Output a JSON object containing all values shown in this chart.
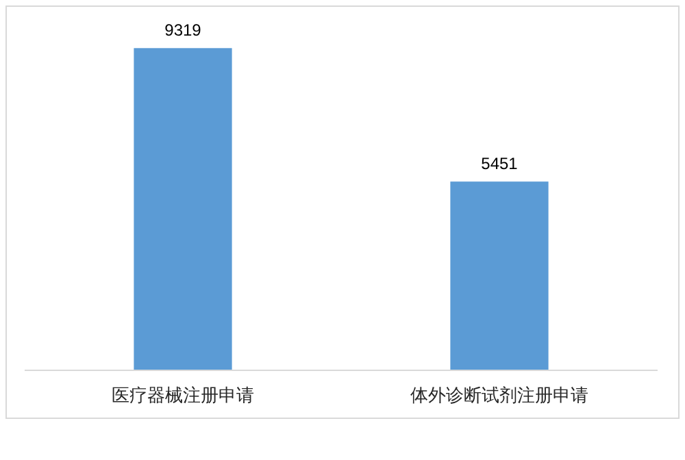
{
  "chart_data": {
    "type": "bar",
    "categories": [
      "医疗器械注册申请",
      "体外诊断试剂注册申请"
    ],
    "values": [
      9319,
      5451
    ],
    "color": "#5b9bd5",
    "data_labels": true
  }
}
